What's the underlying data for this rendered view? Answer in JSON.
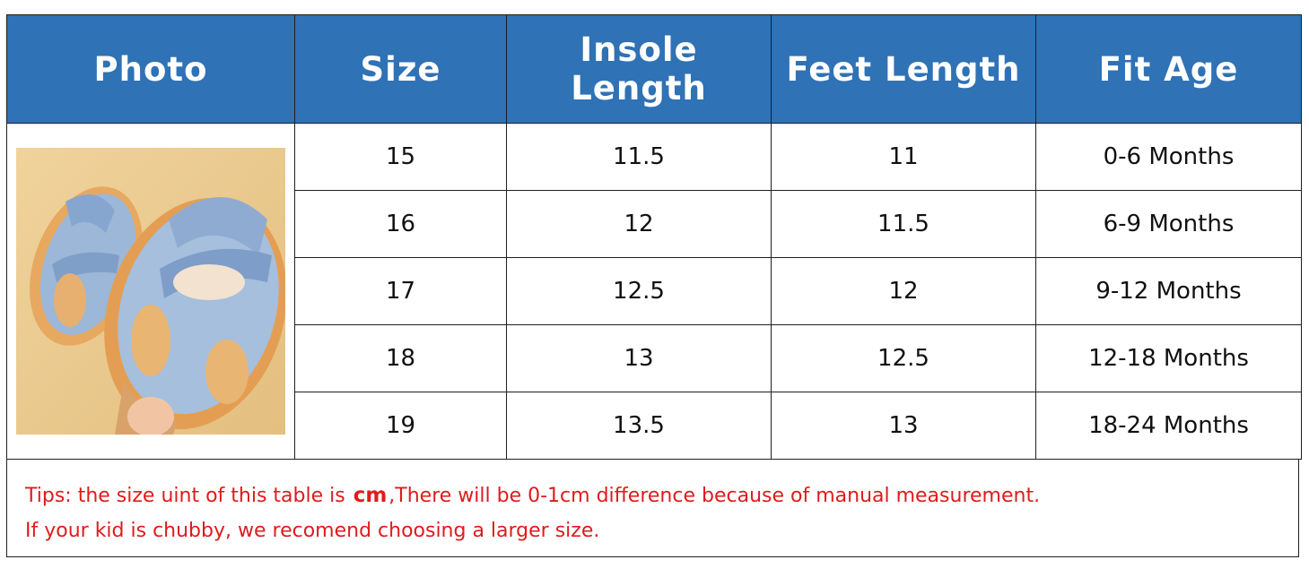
{
  "table": {
    "headers": [
      "Photo",
      "Size",
      "Insole Length",
      "Feet Length",
      "Fit Age"
    ],
    "rows": [
      {
        "size": "15",
        "insole": "11.5",
        "feet": "11",
        "age": "0-6 Months"
      },
      {
        "size": "16",
        "insole": "12",
        "feet": "11.5",
        "age": "6-9 Months"
      },
      {
        "size": "17",
        "insole": "12.5",
        "feet": "12",
        "age": "9-12 Months"
      },
      {
        "size": "18",
        "insole": "13",
        "feet": "12.5",
        "age": "12-18 Months"
      },
      {
        "size": "19",
        "insole": "13.5",
        "feet": "13",
        "age": "18-24 Months"
      }
    ],
    "photo_alt": "blue baby sandal"
  },
  "tips": {
    "line1_before": "Tips: the size uint of this table is ",
    "line1_unit": "cm",
    "line1_after": ",There will be 0-1cm difference because of manual measurement.",
    "line2": "If your kid is chubby, we recomend choosing a larger size."
  },
  "colors": {
    "header_bg": "#2f72b5",
    "header_text": "#ffffff",
    "tip_text": "#e01b1b"
  }
}
